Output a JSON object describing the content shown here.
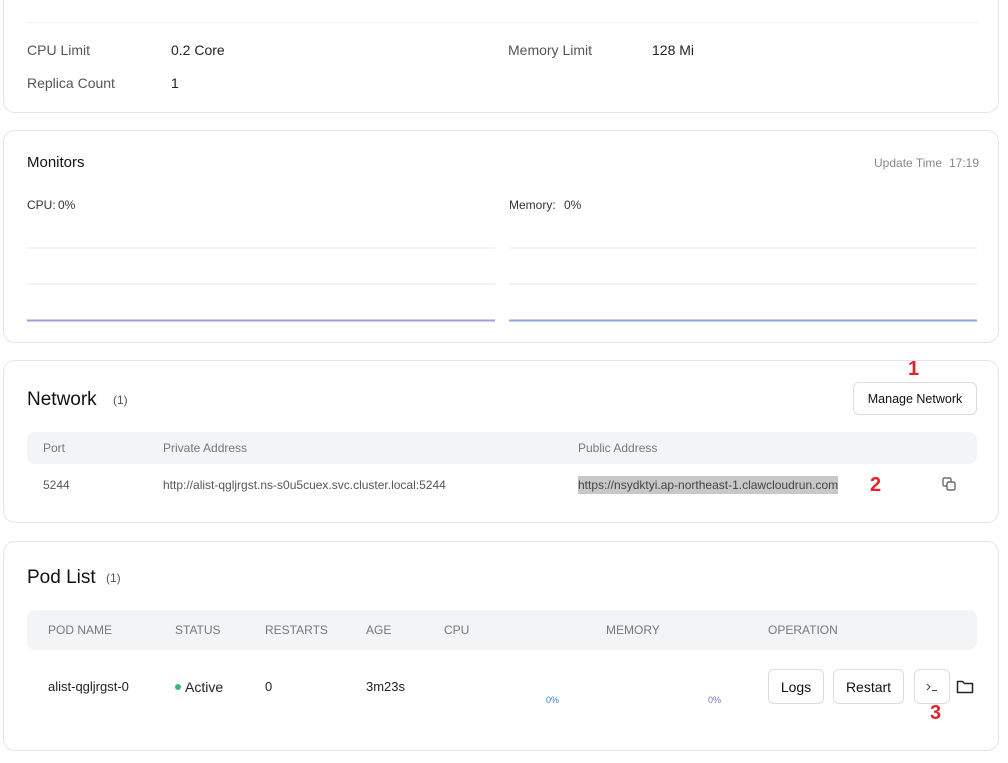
{
  "resources": {
    "rows": [
      {
        "label": "CPU Limit",
        "value": "0.2 Core"
      },
      {
        "label": "Memory Limit",
        "value": "128 Mi"
      },
      {
        "label": "Replica Count",
        "value": "1"
      }
    ]
  },
  "monitors": {
    "title": "Monitors",
    "update_label": "Update Time",
    "update_time": "17:19",
    "charts": [
      {
        "label": "CPU:",
        "value": "0%"
      },
      {
        "label": "Memory:",
        "value": "0%"
      }
    ]
  },
  "network": {
    "title": "Network",
    "count": "(1)",
    "button": "Manage Network",
    "columns": [
      "Port",
      "Private Address",
      "Public Address"
    ],
    "rows": [
      [
        "5244",
        "http://alist-qgljrgst.ns-s0u5cuex.svc.cluster.local:5244",
        "https://nsydktyi.ap-northeast-1.clawcloudrun.com"
      ]
    ]
  },
  "pod_list": {
    "title": "Pod List",
    "count": "(1)",
    "columns": [
      "POD NAME",
      "STATUS",
      "RESTARTS",
      "AGE",
      "CPU",
      "MEMORY",
      "OPERATION"
    ],
    "rows": [
      {
        "name": "alist-qgljrgst-0",
        "status": "Active",
        "restarts": "0",
        "age": "3m23s",
        "cpu": "0%",
        "memory": "0%"
      }
    ],
    "buttons": [
      "Logs",
      "Restart"
    ]
  },
  "annotations": [
    "1",
    "2",
    "3"
  ]
}
